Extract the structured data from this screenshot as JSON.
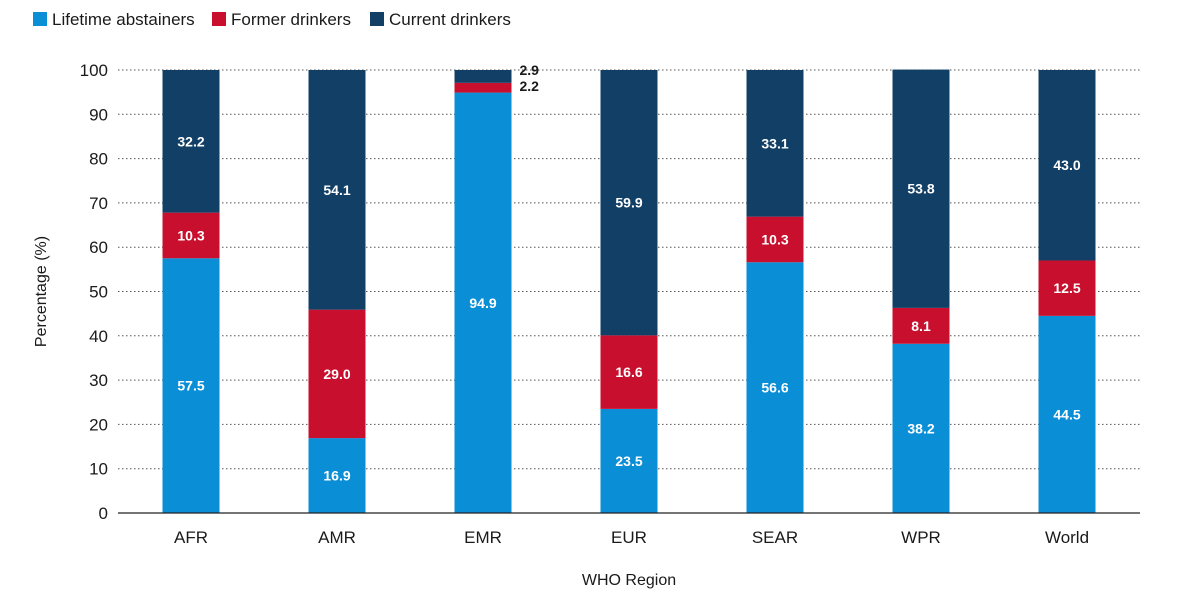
{
  "chart_data": {
    "type": "bar",
    "stacked": true,
    "categories": [
      "AFR",
      "AMR",
      "EMR",
      "EUR",
      "SEAR",
      "WPR",
      "World"
    ],
    "series": [
      {
        "name": "Lifetime abstainers",
        "color": "#0a8fd6",
        "values": [
          57.5,
          16.9,
          94.9,
          23.5,
          56.6,
          38.2,
          44.5
        ]
      },
      {
        "name": "Former drinkers",
        "color": "#c8102e",
        "values": [
          10.3,
          29.0,
          2.2,
          16.6,
          10.3,
          8.1,
          12.5
        ]
      },
      {
        "name": "Current drinkers",
        "color": "#123f66",
        "values": [
          32.2,
          54.1,
          2.9,
          59.9,
          33.1,
          53.8,
          43.0
        ]
      }
    ],
    "xlabel": "WHO Region",
    "ylabel": "Percentage (%)",
    "ylim": [
      0,
      100
    ],
    "yticks": [
      0,
      10,
      20,
      30,
      40,
      50,
      60,
      70,
      80,
      90,
      100
    ],
    "grid": "horizontal dotted",
    "legend_position": "top-left",
    "outside_labels": [
      "EMR"
    ]
  }
}
